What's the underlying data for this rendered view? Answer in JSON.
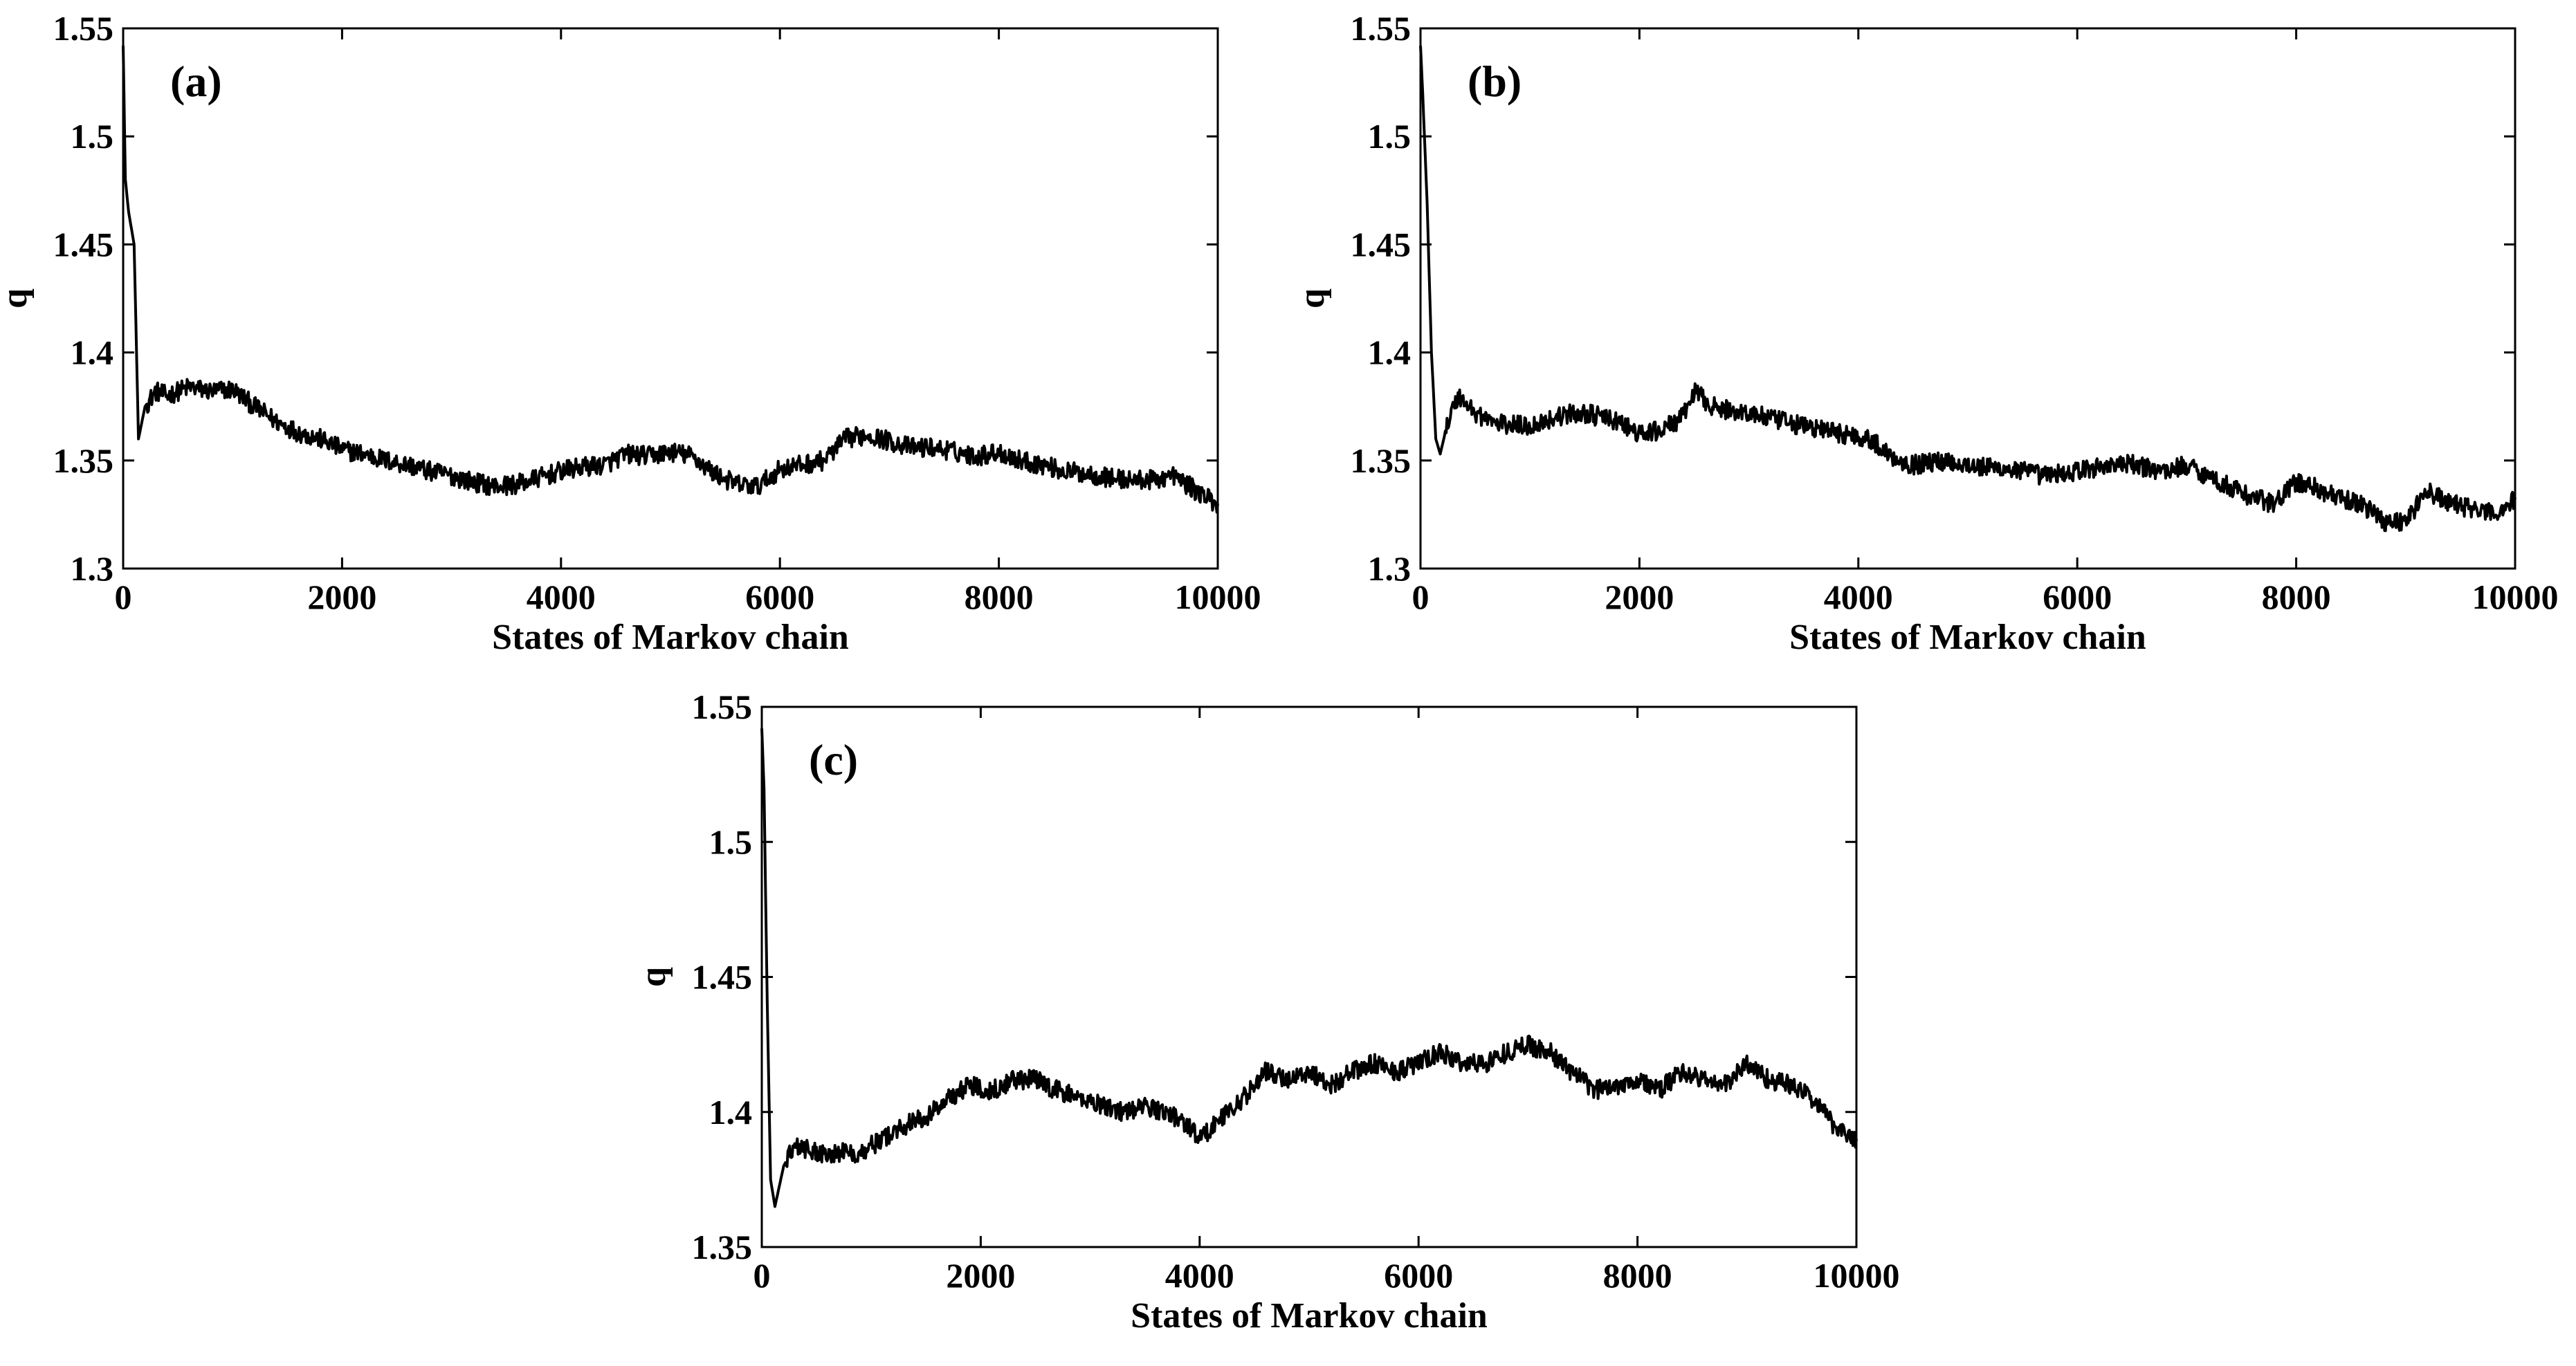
{
  "chart_data": [
    {
      "type": "line",
      "panel_label": "(a)",
      "xlabel": "States of Markov chain",
      "ylabel": "q",
      "xlim": [
        0,
        10000
      ],
      "ylim": [
        1.3,
        1.55
      ],
      "x_ticks": [
        0,
        2000,
        4000,
        6000,
        8000,
        10000
      ],
      "x_tick_labels": [
        "0",
        "2000",
        "4000",
        "6000",
        "8000",
        "10000"
      ],
      "y_ticks": [
        1.3,
        1.35,
        1.4,
        1.45,
        1.5,
        1.55
      ],
      "y_tick_labels": [
        "1.3",
        "1.35",
        "1.4",
        "1.45",
        "1.5",
        "1.55"
      ],
      "series": [
        {
          "name": "q",
          "color": "#000000",
          "x": [
            0,
            20,
            50,
            100,
            140,
            160,
            200,
            300,
            400,
            600,
            800,
            1000,
            1200,
            1400,
            1600,
            1800,
            2000,
            2200,
            2400,
            2600,
            2800,
            3000,
            3200,
            3400,
            3600,
            3800,
            4000,
            4200,
            4400,
            4600,
            4800,
            5000,
            5200,
            5400,
            5600,
            5800,
            6000,
            6200,
            6400,
            6600,
            6800,
            7000,
            7200,
            7400,
            7600,
            7800,
            8000,
            8200,
            8400,
            8600,
            8800,
            9000,
            9200,
            9400,
            9600,
            9800,
            10000
          ],
          "values": [
            1.542,
            1.48,
            1.465,
            1.45,
            1.36,
            1.365,
            1.375,
            1.382,
            1.38,
            1.384,
            1.382,
            1.383,
            1.375,
            1.368,
            1.363,
            1.36,
            1.355,
            1.353,
            1.35,
            1.348,
            1.345,
            1.343,
            1.34,
            1.338,
            1.339,
            1.342,
            1.345,
            1.347,
            1.348,
            1.353,
            1.352,
            1.354,
            1.352,
            1.344,
            1.339,
            1.338,
            1.346,
            1.348,
            1.35,
            1.36,
            1.362,
            1.359,
            1.356,
            1.356,
            1.354,
            1.352,
            1.354,
            1.35,
            1.348,
            1.345,
            1.344,
            1.342,
            1.341,
            1.341,
            1.343,
            1.336,
            1.33
          ]
        }
      ]
    },
    {
      "type": "line",
      "panel_label": "(b)",
      "xlabel": "States of Markov chain",
      "ylabel": "q",
      "xlim": [
        0,
        10000
      ],
      "ylim": [
        1.3,
        1.55
      ],
      "x_ticks": [
        0,
        2000,
        4000,
        6000,
        8000,
        10000
      ],
      "x_tick_labels": [
        "0",
        "2000",
        "4000",
        "6000",
        "8000",
        "10000"
      ],
      "y_ticks": [
        1.3,
        1.35,
        1.4,
        1.45,
        1.5,
        1.55
      ],
      "y_tick_labels": [
        "1.3",
        "1.35",
        "1.4",
        "1.45",
        "1.5",
        "1.55"
      ],
      "series": [
        {
          "name": "q",
          "color": "#000000",
          "x": [
            0,
            20,
            60,
            100,
            140,
            180,
            250,
            350,
            500,
            700,
            1000,
            1300,
            1500,
            1800,
            2000,
            2200,
            2400,
            2500,
            2700,
            3000,
            3300,
            3600,
            3900,
            4100,
            4300,
            4500,
            4800,
            5100,
            5400,
            5700,
            6000,
            6300,
            6500,
            6800,
            7000,
            7300,
            7600,
            7800,
            8000,
            8200,
            8400,
            8600,
            8800,
            9000,
            9200,
            9400,
            9600,
            9800,
            10000
          ],
          "values": [
            1.542,
            1.52,
            1.47,
            1.4,
            1.36,
            1.353,
            1.368,
            1.38,
            1.372,
            1.367,
            1.366,
            1.371,
            1.372,
            1.368,
            1.362,
            1.364,
            1.37,
            1.382,
            1.374,
            1.372,
            1.368,
            1.365,
            1.362,
            1.36,
            1.352,
            1.348,
            1.35,
            1.347,
            1.346,
            1.343,
            1.345,
            1.348,
            1.348,
            1.345,
            1.348,
            1.34,
            1.333,
            1.33,
            1.34,
            1.337,
            1.332,
            1.33,
            1.322,
            1.322,
            1.336,
            1.33,
            1.328,
            1.325,
            1.332
          ]
        }
      ]
    },
    {
      "type": "line",
      "panel_label": "(c)",
      "xlabel": "States of Markov chain",
      "ylabel": "q",
      "xlim": [
        0,
        10000
      ],
      "ylim": [
        1.35,
        1.55
      ],
      "x_ticks": [
        0,
        2000,
        4000,
        6000,
        8000,
        10000
      ],
      "x_tick_labels": [
        "0",
        "2000",
        "4000",
        "6000",
        "8000",
        "10000"
      ],
      "y_ticks": [
        1.35,
        1.4,
        1.45,
        1.5,
        1.55
      ],
      "y_tick_labels": [
        "1.35",
        "1.4",
        "1.45",
        "1.5",
        "1.55"
      ],
      "series": [
        {
          "name": "q",
          "color": "#000000",
          "x": [
            0,
            20,
            50,
            80,
            120,
            200,
            300,
            500,
            700,
            900,
            1100,
            1300,
            1500,
            1700,
            1900,
            2100,
            2300,
            2500,
            2700,
            2900,
            3100,
            3300,
            3500,
            3700,
            3900,
            4000,
            4200,
            4400,
            4600,
            4800,
            5000,
            5200,
            5400,
            5600,
            5800,
            6000,
            6200,
            6400,
            6600,
            6800,
            7000,
            7200,
            7400,
            7600,
            7800,
            8000,
            8200,
            8400,
            8600,
            8800,
            9000,
            9200,
            9400,
            9600,
            9800,
            10000
          ],
          "values": [
            1.542,
            1.52,
            1.44,
            1.375,
            1.365,
            1.38,
            1.388,
            1.385,
            1.385,
            1.385,
            1.39,
            1.395,
            1.398,
            1.405,
            1.41,
            1.408,
            1.412,
            1.412,
            1.408,
            1.405,
            1.403,
            1.4,
            1.402,
            1.4,
            1.395,
            1.39,
            1.398,
            1.405,
            1.415,
            1.412,
            1.415,
            1.41,
            1.415,
            1.418,
            1.415,
            1.418,
            1.422,
            1.418,
            1.418,
            1.422,
            1.425,
            1.422,
            1.415,
            1.408,
            1.41,
            1.412,
            1.408,
            1.415,
            1.412,
            1.41,
            1.418,
            1.412,
            1.41,
            1.405,
            1.395,
            1.39
          ]
        }
      ]
    }
  ]
}
